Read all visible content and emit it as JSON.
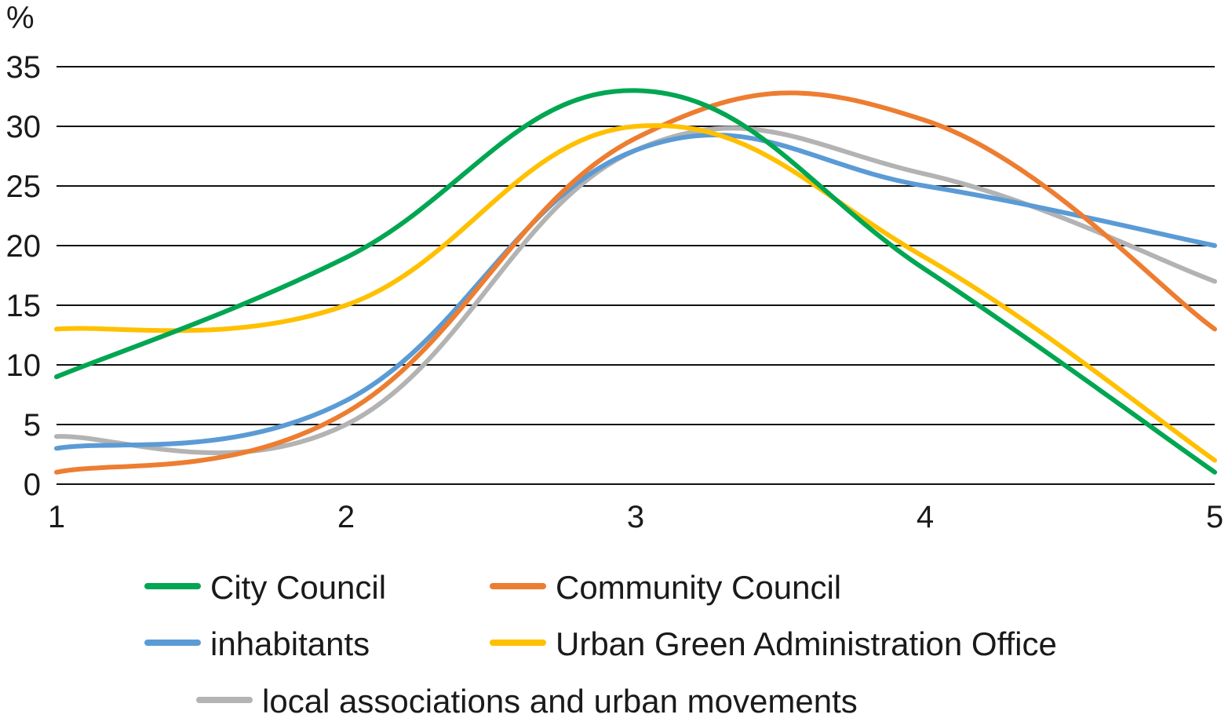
{
  "chart_data": {
    "type": "line",
    "title": "",
    "xlabel": "",
    "ylabel": "%",
    "x": [
      1,
      2,
      3,
      4,
      5
    ],
    "ylim": [
      0,
      35
    ],
    "yticks": [
      0,
      5,
      10,
      15,
      20,
      25,
      30,
      35
    ],
    "grid": true,
    "smooth": true,
    "legend_position": "bottom",
    "series": [
      {
        "name": "City Council",
        "color": "#00a651",
        "values": [
          9,
          19,
          33,
          18,
          1
        ]
      },
      {
        "name": "Community Council",
        "color": "#ed7d31",
        "values": [
          1,
          6,
          29,
          30.5,
          13
        ]
      },
      {
        "name": "inhabitants",
        "color": "#5b9bd5",
        "values": [
          3,
          7,
          28,
          25,
          20
        ]
      },
      {
        "name": "Urban Green Administration Office",
        "color": "#ffc000",
        "values": [
          13,
          15,
          30,
          19,
          2
        ]
      },
      {
        "name": "local associations and urban movements",
        "color": "#b3b3b3",
        "values": [
          4,
          5,
          28,
          26,
          17
        ]
      }
    ]
  }
}
